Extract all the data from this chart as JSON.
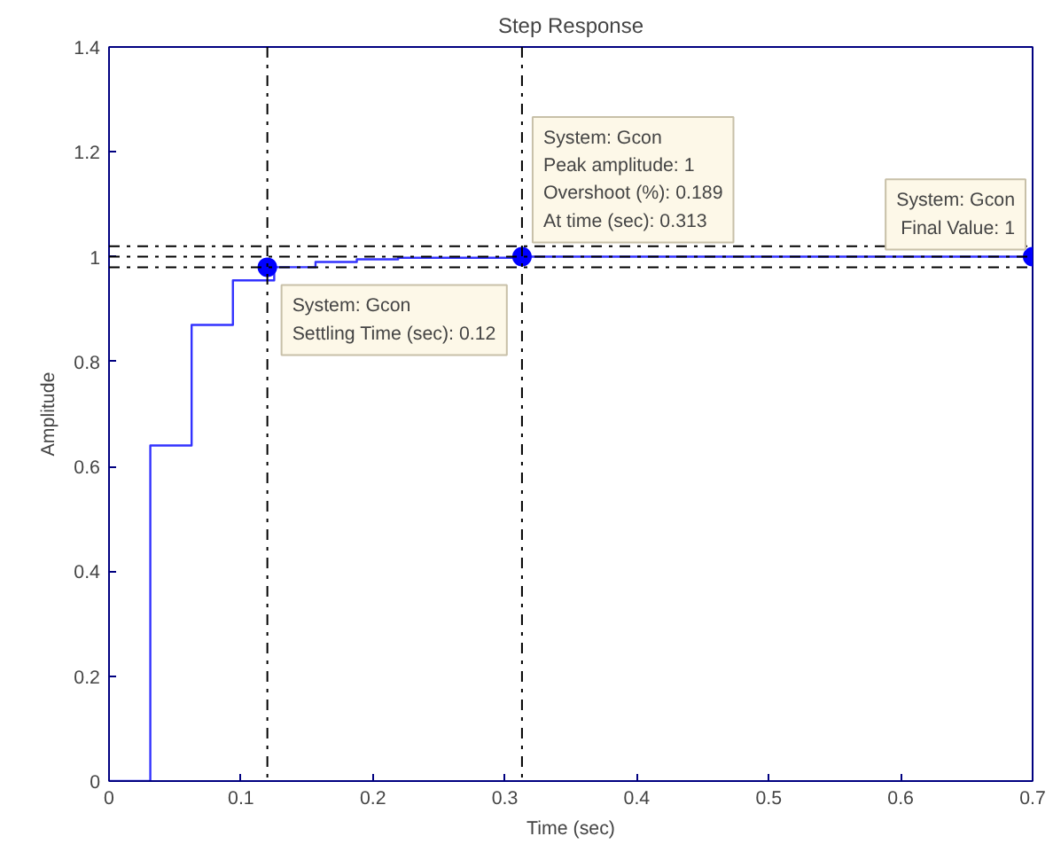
{
  "chart_data": {
    "type": "step",
    "title": "Step Response",
    "xlabel": "Time (sec)",
    "ylabel": "Amplitude",
    "xlim": [
      0,
      0.7
    ],
    "xticks": [
      0,
      0.1,
      0.2,
      0.3,
      0.4,
      0.5,
      0.6,
      0.7
    ],
    "ylim": [
      0,
      1.4
    ],
    "yticks": [
      0,
      0.2,
      0.4,
      0.6,
      0.8,
      1,
      1.2,
      1.4
    ],
    "grid": false,
    "marker": "none",
    "line_style": "solid",
    "series": [
      {
        "color": "#3333ff",
        "x": [
          0,
          0.0313,
          0.0626,
          0.0939,
          0.1252,
          0.1565,
          0.1878,
          0.2191,
          0.313,
          0.7
        ],
        "values": [
          0,
          0.64,
          0.87,
          0.955,
          0.98,
          0.99,
          0.995,
          0.998,
          1,
          1
        ]
      },
      {
        "type": "scatter",
        "marker": "circle",
        "color": "#0000ff",
        "x": [
          0.12,
          0.313,
          0.7
        ],
        "values": [
          0.98,
          1,
          1
        ]
      }
    ],
    "ref_lines": [
      {
        "axis": "y",
        "value": 0.98,
        "color": "#000000",
        "line_style": "dashdot"
      },
      {
        "axis": "y",
        "value": 1,
        "color": "#000000",
        "line_style": "dashdot"
      },
      {
        "axis": "y",
        "value": 1.02,
        "color": "#000000",
        "line_style": "dashdot"
      },
      {
        "axis": "x",
        "value": 0.12,
        "color": "#000000",
        "line_style": "dashdot"
      },
      {
        "axis": "x",
        "value": 0.313,
        "color": "#000000",
        "line_style": "dashdot"
      }
    ],
    "annotations": [
      {
        "text": "System: Gcon\nSettling Time (sec): 0.12",
        "x": 0.12,
        "y": 0.98
      },
      {
        "text": "System: Gcon\nPeak amplitude: 1\nOvershoot (%): 0.189\nAt time (sec): 0.313",
        "x": 0.313,
        "y": 1
      },
      {
        "text": "System: Gcon\nFinal Value: 1",
        "x": 0.7,
        "y": 1
      }
    ]
  }
}
